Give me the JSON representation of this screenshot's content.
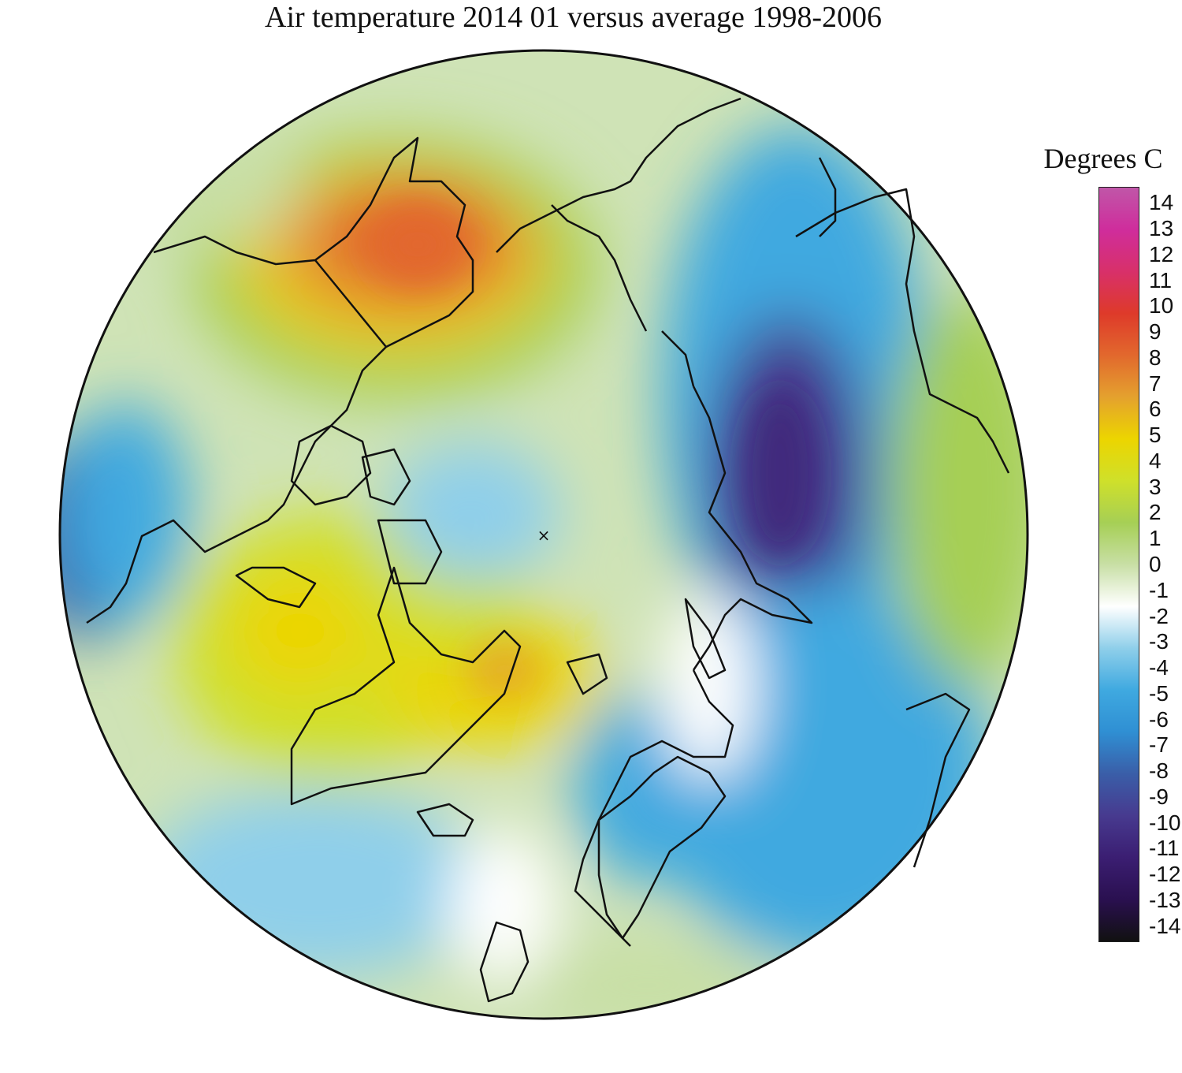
{
  "title": "Air temperature 2014 01 versus average 1998-2006",
  "legend": {
    "title": "Degrees C",
    "ticks": [
      "14",
      "13",
      "12",
      "11",
      "10",
      "9",
      "8",
      "7",
      "6",
      "5",
      "4",
      "3",
      "2",
      "1",
      "0",
      "-1",
      "-2",
      "-3",
      "-4",
      "-5",
      "-6",
      "-7",
      "-8",
      "-9",
      "-10",
      "-11",
      "-12",
      "-13",
      "-14"
    ],
    "range": [
      -14,
      14
    ]
  },
  "colors": {
    "scale": [
      "#111111",
      "#2a1050",
      "#3b1e72",
      "#473a8f",
      "#3a5ea8",
      "#2f8fd3",
      "#3fa9e0",
      "#8fcfea",
      "#ffffff",
      "#c8dfa5",
      "#a6cf55",
      "#cfe02a",
      "#ecd500",
      "#e4a12e",
      "#e2682d",
      "#de3a2a",
      "#d8306a",
      "#cf2d9c",
      "#c056a8"
    ],
    "coastline": "#111111"
  },
  "map": {
    "projection": "north polar stereographic",
    "pole_marker": "×"
  }
}
